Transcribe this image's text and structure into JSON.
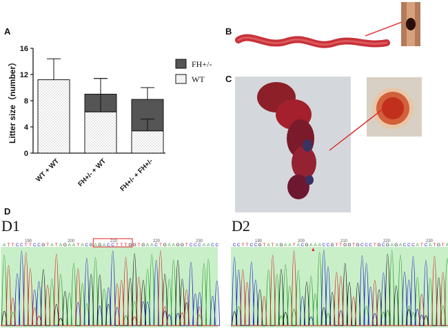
{
  "panel_labels": {
    "a": "A",
    "b": "B",
    "c": "C",
    "d": "D"
  },
  "chart_data": {
    "type": "bar",
    "stacked": true,
    "title": "",
    "ylabel": "Litter size（number）",
    "xlabel": "",
    "ylim": [
      0,
      16
    ],
    "yticks": [
      0,
      4,
      8,
      12,
      16
    ],
    "categories": [
      "WT + WT",
      "FH+/- + WT",
      "FH+/- + FH+/-"
    ],
    "series": [
      {
        "name": "WT",
        "values": [
          11.2,
          6.3,
          3.4
        ],
        "errors": [
          3.2,
          5.1,
          1.8
        ],
        "fill": "dotted"
      },
      {
        "name": "FH+/-",
        "values": [
          0,
          2.7,
          4.8
        ],
        "errors": [
          0,
          2.4,
          1.8
        ],
        "fill": "#555555"
      }
    ],
    "legend": [
      "FH+/-",
      "WT"
    ],
    "legend_position": "right"
  },
  "figure_b": {
    "description_label": "B"
  },
  "dna": {
    "d1": {
      "label": "D1",
      "sequence": "ATTCCTTCCGTATAGAATACGAGACCTTTGGTGAACTGAAGGTCCCAACC",
      "positions": [
        "190",
        "200",
        "210",
        "220",
        "230"
      ],
      "box_text": "GACCTTTGG"
    },
    "d2": {
      "label": "D2",
      "sequence": "CCTTCCGTATAGAATACGAAACCGTTGGTGCCCTGCGAGACCCATCATGTA",
      "positions": [
        "190",
        "200",
        "210",
        "220",
        "230"
      ]
    }
  },
  "colors": {
    "bar_dark": "#555555",
    "trace_bg": "#c9efc9",
    "pointer": "#e02020"
  }
}
